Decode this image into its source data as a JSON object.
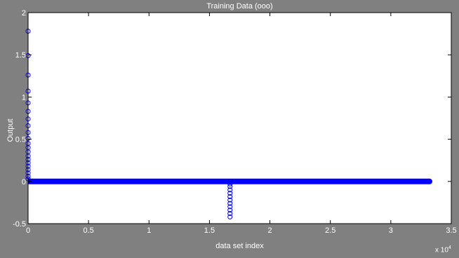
{
  "chart_data": {
    "type": "scatter",
    "title": "Training Data (ooo)",
    "xlabel": "data set index",
    "ylabel": "Output",
    "x_multiplier_label": "x 10",
    "x_multiplier_exponent": "4",
    "xlim": [
      0,
      3.5
    ],
    "ylim": [
      -0.5,
      2
    ],
    "xticks": [
      0,
      0.5,
      1,
      1.5,
      2,
      2.5,
      3,
      3.5
    ],
    "xtick_labels": [
      "0",
      "0.5",
      "1",
      "1.5",
      "2",
      "2.5",
      "3",
      "3.5"
    ],
    "yticks": [
      -0.5,
      0,
      0.5,
      1,
      1.5,
      2
    ],
    "ytick_labels": [
      "-0.5",
      "0",
      "0.5",
      "1",
      "1.5",
      "2"
    ],
    "grid": false,
    "marker": "circle",
    "marker_color": "#0000ff",
    "axes_background": "#ffffff",
    "figure_background": "#808080",
    "baseline_series": {
      "x_start": 0,
      "x_end": 3.32,
      "y": 0
    },
    "points": [
      {
        "x": 0,
        "y": 1.78
      },
      {
        "x": 0,
        "y": 1.49
      },
      {
        "x": 0,
        "y": 1.26
      },
      {
        "x": 0,
        "y": 1.07
      },
      {
        "x": 0,
        "y": 0.93
      },
      {
        "x": 0,
        "y": 0.83
      },
      {
        "x": 0,
        "y": 0.74
      },
      {
        "x": 0,
        "y": 0.66
      },
      {
        "x": 0,
        "y": 0.58
      },
      {
        "x": 0,
        "y": 0.51
      },
      {
        "x": 0,
        "y": 0.45
      },
      {
        "x": 0,
        "y": 0.4
      },
      {
        "x": 0,
        "y": 0.35
      },
      {
        "x": 0,
        "y": 0.3
      },
      {
        "x": 0,
        "y": 0.26
      },
      {
        "x": 0,
        "y": 0.22
      },
      {
        "x": 0,
        "y": 0.18
      },
      {
        "x": 0,
        "y": 0.14
      },
      {
        "x": 0,
        "y": 0.1
      },
      {
        "x": 0,
        "y": 0.06
      },
      {
        "x": 0,
        "y": 0.03
      },
      {
        "x": 1.67,
        "y": -0.42
      },
      {
        "x": 1.67,
        "y": -0.38
      },
      {
        "x": 1.67,
        "y": -0.34
      },
      {
        "x": 1.67,
        "y": -0.3
      },
      {
        "x": 1.67,
        "y": -0.26
      },
      {
        "x": 1.67,
        "y": -0.22
      },
      {
        "x": 1.67,
        "y": -0.18
      },
      {
        "x": 1.67,
        "y": -0.14
      },
      {
        "x": 1.67,
        "y": -0.1
      },
      {
        "x": 1.67,
        "y": -0.06
      },
      {
        "x": 1.67,
        "y": -0.03
      }
    ]
  }
}
